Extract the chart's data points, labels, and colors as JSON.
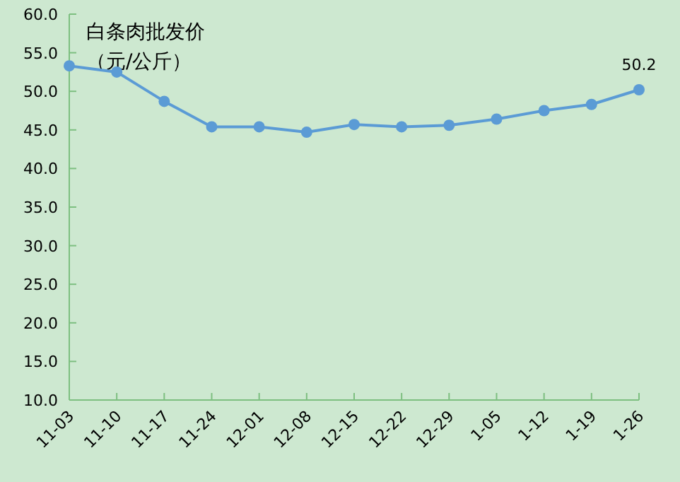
{
  "chart_data": {
    "type": "line",
    "title": "白条肉批发价",
    "subtitle": "（元/公斤）",
    "categories": [
      "11-03",
      "11-10",
      "11-17",
      "11-24",
      "12-01",
      "12-08",
      "12-15",
      "12-22",
      "12-29",
      "1-05",
      "1-12",
      "1-19",
      "1-26"
    ],
    "series": [
      {
        "color": "#5b9bd5",
        "values": [
          53.3,
          52.5,
          48.7,
          45.4,
          45.4,
          44.7,
          45.7,
          45.4,
          45.6,
          46.4,
          47.5,
          48.3,
          50.2
        ],
        "value_labels": [
          null,
          null,
          null,
          null,
          null,
          null,
          null,
          null,
          null,
          null,
          null,
          null,
          "50.2"
        ]
      }
    ],
    "ylim": [
      10,
      60
    ],
    "yticks": [
      {
        "value": 10,
        "label": "10.0"
      },
      {
        "value": 15,
        "label": "15.0"
      },
      {
        "value": 20,
        "label": "20.0"
      },
      {
        "value": 25,
        "label": "25.0"
      },
      {
        "value": 30,
        "label": "30.0"
      },
      {
        "value": 35,
        "label": "35.0"
      },
      {
        "value": 40,
        "label": "40.0"
      },
      {
        "value": 45,
        "label": "45.0"
      },
      {
        "value": 50,
        "label": "50.0"
      },
      {
        "value": 55,
        "label": "55.0"
      },
      {
        "value": 60,
        "label": "60.0"
      }
    ],
    "grid": false,
    "marker": "circle",
    "line_style": "solid"
  }
}
